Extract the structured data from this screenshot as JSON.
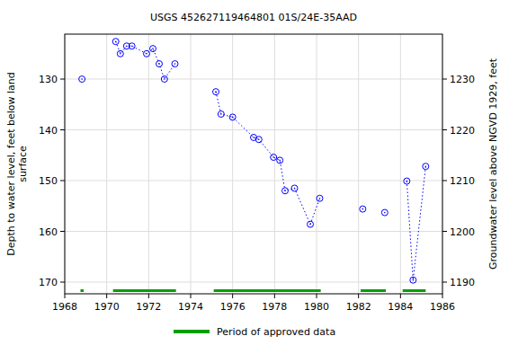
{
  "chart_data": {
    "type": "scatter",
    "title": "USGS 452627119464801 01S/24E-35AAD",
    "y_label": [
      "Depth to water level, feet below land",
      "surface"
    ],
    "y2_label": "Groundwater level above NGVD 1929, feet",
    "xlim": [
      1968,
      1986
    ],
    "xticks": [
      1968,
      1970,
      1972,
      1974,
      1976,
      1978,
      1980,
      1982,
      1984,
      1986
    ],
    "ylim": [
      121.15,
      172.3
    ],
    "yticks": [
      130,
      140,
      150,
      160,
      170
    ],
    "y2lim": [
      1238.85,
      1187.7
    ],
    "y2ticks": [
      1190,
      1200,
      1210,
      1220,
      1230
    ],
    "grid": true,
    "series": [
      {
        "name": "Depth to water level",
        "type": "scatter",
        "color": "#0000ff",
        "marker": "circle",
        "line_style": "dotted",
        "x": [
          1968.82,
          null,
          1970.43,
          1970.65,
          1970.95,
          1971.2,
          1971.9,
          1972.2,
          1972.5,
          1972.75,
          1973.25,
          null,
          1975.2,
          1975.45,
          1976.0,
          1977.0,
          1977.25,
          1977.95,
          1978.25,
          1978.5,
          1978.95,
          1979.7,
          1980.15,
          null,
          1982.2,
          null,
          1983.25,
          null,
          1984.3,
          1984.6,
          1985.2
        ],
        "values": [
          130.0,
          null,
          122.6,
          125.0,
          123.5,
          123.5,
          125.0,
          124.0,
          127.0,
          130.0,
          127.0,
          null,
          132.5,
          136.9,
          137.5,
          141.5,
          141.9,
          145.4,
          146.0,
          152.0,
          151.5,
          158.6,
          153.5,
          null,
          155.6,
          null,
          156.3,
          null,
          150.1,
          169.6,
          147.2
        ]
      },
      {
        "name": "Period of approved data",
        "type": "range",
        "color": "#00a000",
        "ranges": [
          [
            1968.75,
            1968.9
          ],
          [
            1970.3,
            1973.3
          ],
          [
            1975.1,
            1980.2
          ],
          [
            1982.1,
            1983.3
          ],
          [
            1984.1,
            1985.2
          ]
        ]
      }
    ]
  }
}
